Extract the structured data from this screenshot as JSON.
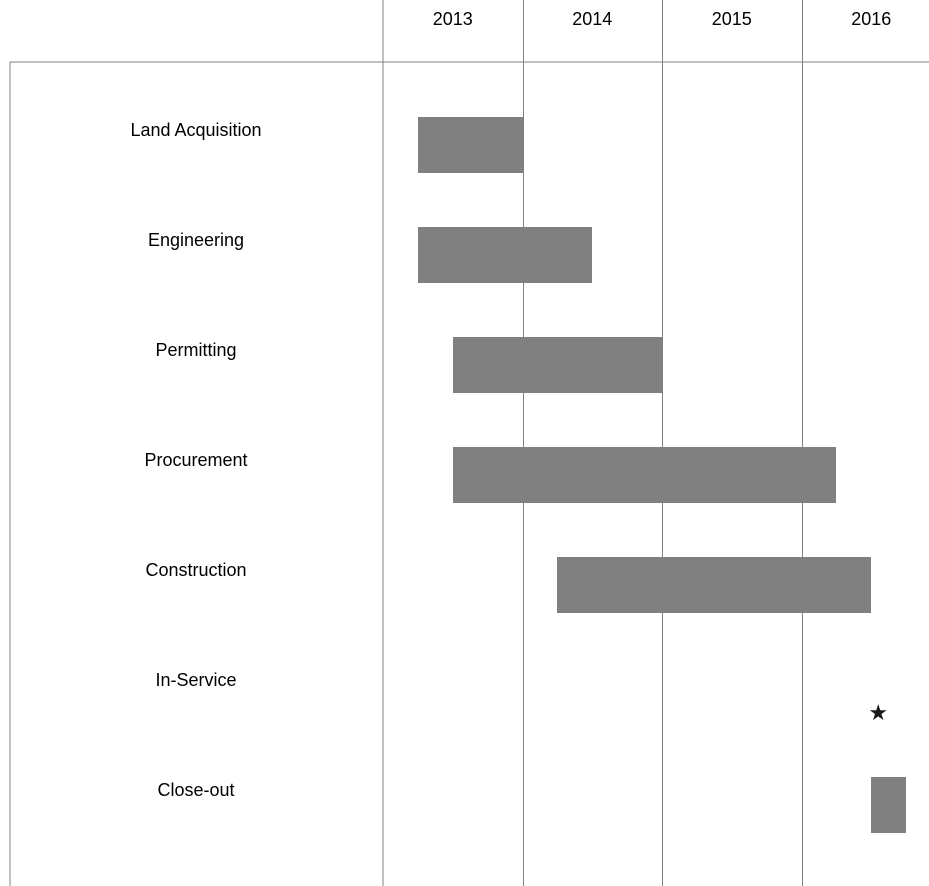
{
  "chart_data": {
    "type": "gantt",
    "title": "",
    "years": [
      "2013",
      "2014",
      "2015",
      "2016"
    ],
    "tasks": [
      {
        "label": "Land Acquisition",
        "start": 2013.25,
        "end": 2014.0
      },
      {
        "label": "Engineering",
        "start": 2013.25,
        "end": 2014.5
      },
      {
        "label": "Permitting",
        "start": 2013.5,
        "end": 2015.0
      },
      {
        "label": "Procurement",
        "start": 2013.5,
        "end": 2016.25
      },
      {
        "label": "Construction",
        "start": 2014.25,
        "end": 2016.5
      },
      {
        "label": "In-Service",
        "milestone": 2016.5,
        "marker": "★"
      },
      {
        "label": "Close-out",
        "start": 2016.5,
        "end": 2016.75
      }
    ],
    "colors": {
      "bar": "#808080",
      "grid": "#808080",
      "milestone": "#1a1a1a"
    }
  }
}
